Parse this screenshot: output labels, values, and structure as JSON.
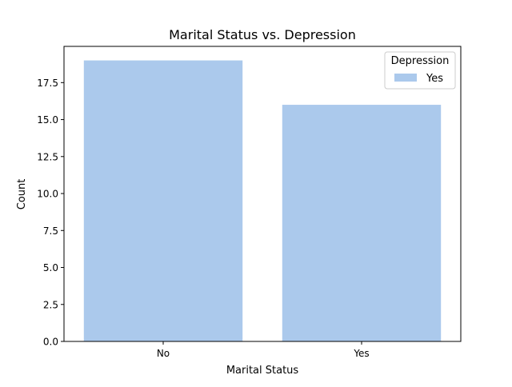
{
  "chart_data": {
    "type": "bar",
    "title": "Marital Status vs. Depression",
    "xlabel": "Marital Status",
    "ylabel": "Count",
    "categories": [
      "No",
      "Yes"
    ],
    "series": [
      {
        "name": "Yes",
        "values": [
          19,
          16
        ],
        "color": "#abc9ec"
      }
    ],
    "ylim": [
      0,
      19.95
    ],
    "yticks": [
      0.0,
      2.5,
      5.0,
      7.5,
      10.0,
      12.5,
      15.0,
      17.5
    ],
    "ytick_labels": [
      "0.0",
      "2.5",
      "5.0",
      "7.5",
      "10.0",
      "12.5",
      "15.0",
      "17.5"
    ],
    "grid": false,
    "legend": {
      "title": "Depression",
      "placement": "top-right"
    }
  }
}
